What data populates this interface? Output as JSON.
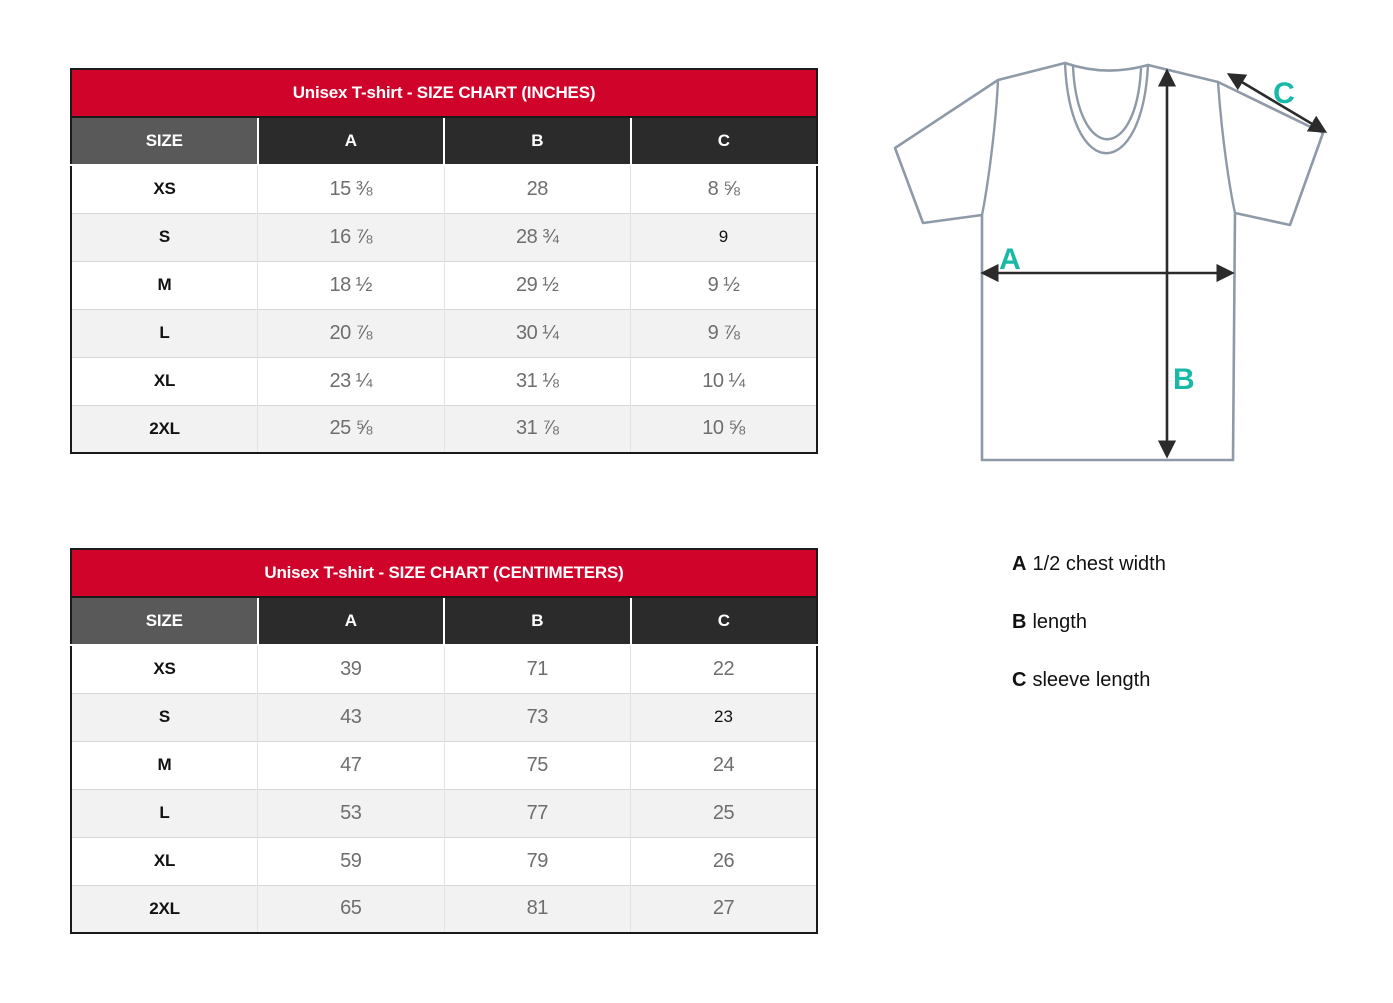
{
  "colors": {
    "header_red": "#d0032b",
    "header_dark": "#2b2b2b",
    "header_gray": "#595959",
    "row_alt": "#f2f2f2",
    "value_gray": "#6e6e6e",
    "label_black": "#111111",
    "outline_gray": "#8e9aa8",
    "arrow_dark": "#2b2b2b",
    "accent_teal": "#19b9a8"
  },
  "tables": [
    {
      "id": "inches",
      "title": "Unisex T-shirt - SIZE CHART (INCHES)",
      "size_header": "SIZE",
      "columns": [
        "A",
        "B",
        "C"
      ],
      "rows": [
        {
          "size": "XS",
          "values": [
            "15 ⅜",
            "28",
            "8 ⅝"
          ]
        },
        {
          "size": "S",
          "values": [
            "16 ⅞",
            "28 ¾",
            "9"
          ],
          "dark_cols": [
            2
          ]
        },
        {
          "size": "M",
          "values": [
            "18 ½",
            "29 ½",
            "9 ½"
          ]
        },
        {
          "size": "L",
          "values": [
            "20 ⅞",
            "30 ¼",
            "9 ⅞"
          ]
        },
        {
          "size": "XL",
          "values": [
            "23 ¼",
            "31 ⅛",
            "10 ¼"
          ]
        },
        {
          "size": "2XL",
          "values": [
            "25 ⅝",
            "31 ⅞",
            "10 ⅝"
          ]
        }
      ]
    },
    {
      "id": "centimeters",
      "title": "Unisex T-shirt - SIZE CHART (CENTIMETERS)",
      "size_header": "SIZE",
      "columns": [
        "A",
        "B",
        "C"
      ],
      "rows": [
        {
          "size": "XS",
          "values": [
            "39",
            "71",
            "22"
          ]
        },
        {
          "size": "S",
          "values": [
            "43",
            "73",
            "23"
          ],
          "dark_cols": [
            2
          ]
        },
        {
          "size": "M",
          "values": [
            "47",
            "75",
            "24"
          ]
        },
        {
          "size": "L",
          "values": [
            "53",
            "77",
            "25"
          ]
        },
        {
          "size": "XL",
          "values": [
            "59",
            "79",
            "26"
          ]
        },
        {
          "size": "2XL",
          "values": [
            "65",
            "81",
            "27"
          ]
        }
      ]
    }
  ],
  "diagram": {
    "labels": {
      "a": "A",
      "b": "B",
      "c": "C"
    }
  },
  "legend": {
    "items": [
      {
        "key": "A",
        "text": "1/2 chest width"
      },
      {
        "key": "B",
        "text": "length"
      },
      {
        "key": "C",
        "text": "sleeve length"
      }
    ]
  }
}
